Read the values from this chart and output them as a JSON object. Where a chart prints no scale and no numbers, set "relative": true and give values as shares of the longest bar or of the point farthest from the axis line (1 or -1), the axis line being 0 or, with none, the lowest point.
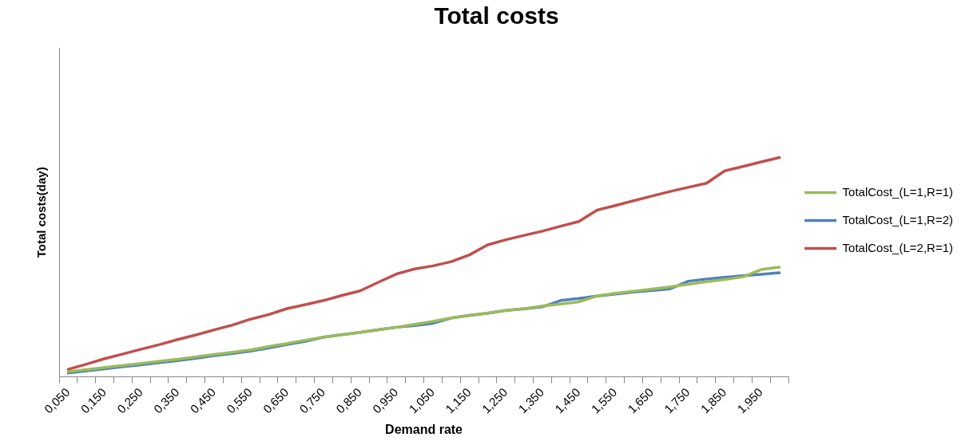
{
  "chart_data": {
    "type": "line",
    "title": "Total costs",
    "xlabel": "Demand rate",
    "ylabel": "Total costs(day)",
    "categories": [
      "0,050",
      null,
      "0,150",
      null,
      "0,250",
      null,
      "0,350",
      null,
      "0,450",
      null,
      "0,550",
      null,
      "0,650",
      null,
      "0,750",
      null,
      "0,850",
      null,
      "0,950",
      null,
      "1,050",
      null,
      "1,150",
      null,
      "1,250",
      null,
      "1,350",
      null,
      "1,450",
      null,
      "1,550",
      null,
      "1,650",
      null,
      "1,750",
      null,
      "1,850",
      null,
      "1,950",
      null
    ],
    "relative": true,
    "legend": "right",
    "marker": "none",
    "line_style": "solid",
    "series": [
      {
        "name": "TotalCost_(L=1,R=1)",
        "color": "#9bbb59",
        "values": [
          0.024,
          0.033,
          0.043,
          0.052,
          0.061,
          0.071,
          0.08,
          0.091,
          0.102,
          0.112,
          0.123,
          0.138,
          0.152,
          0.167,
          0.181,
          0.192,
          0.203,
          0.215,
          0.226,
          0.239,
          0.253,
          0.268,
          0.28,
          0.29,
          0.303,
          0.311,
          0.323,
          0.332,
          0.342,
          0.369,
          0.381,
          0.39,
          0.4,
          0.41,
          0.422,
          0.434,
          0.444,
          0.456,
          0.489,
          0.5
        ]
      },
      {
        "name": "TotalCost_(L=1,R=2)",
        "color": "#4f81bd",
        "values": [
          0.017,
          0.027,
          0.036,
          0.046,
          0.055,
          0.065,
          0.074,
          0.085,
          0.096,
          0.106,
          0.117,
          0.132,
          0.147,
          0.162,
          0.181,
          0.192,
          0.203,
          0.215,
          0.226,
          0.234,
          0.244,
          0.268,
          0.28,
          0.29,
          0.303,
          0.31,
          0.319,
          0.348,
          0.357,
          0.368,
          0.377,
          0.386,
          0.394,
          0.401,
          0.436,
          0.446,
          0.454,
          0.461,
          0.467,
          0.475
        ]
      },
      {
        "name": "TotalCost_(L=2,R=1)",
        "color": "#c0504d",
        "values": [
          0.034,
          0.058,
          0.083,
          0.104,
          0.126,
          0.147,
          0.17,
          0.191,
          0.214,
          0.236,
          0.263,
          0.284,
          0.311,
          0.329,
          0.348,
          0.371,
          0.392,
          0.431,
          0.469,
          0.492,
          0.506,
          0.525,
          0.556,
          0.602,
          0.625,
          0.645,
          0.664,
          0.687,
          0.708,
          0.76,
          0.781,
          0.803,
          0.824,
          0.845,
          0.864,
          0.883,
          0.939,
          0.959,
          0.98,
          1
        ]
      }
    ]
  }
}
